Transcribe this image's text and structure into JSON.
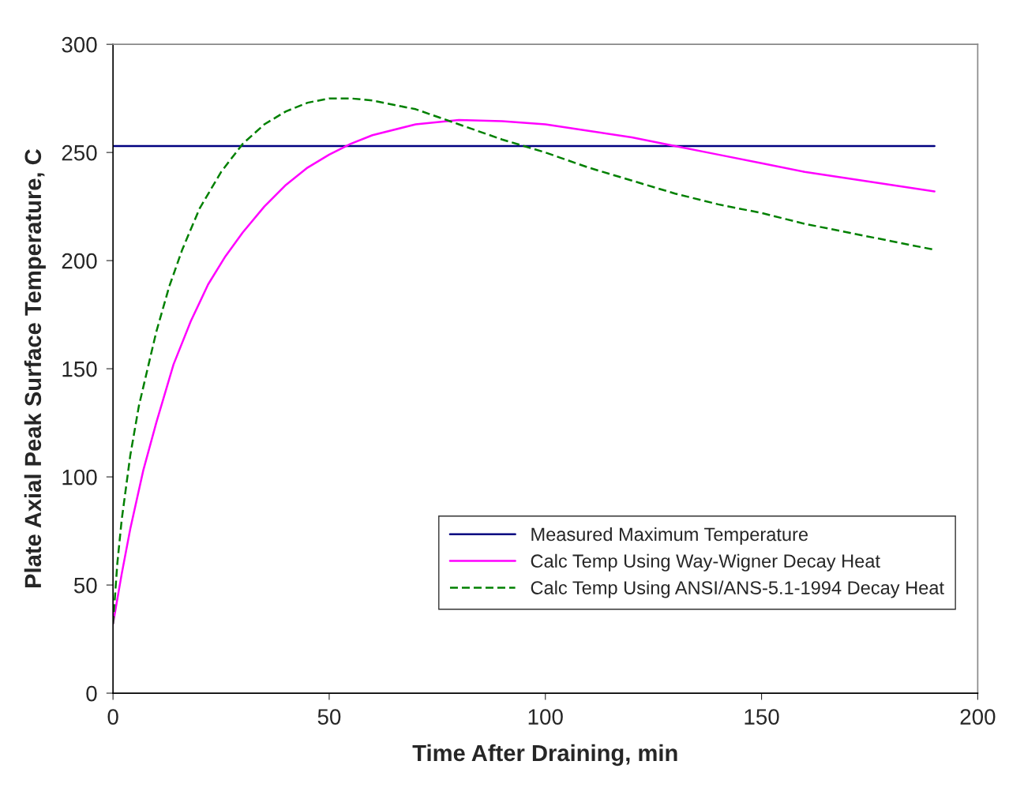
{
  "chart_data": {
    "type": "line",
    "xlabel": "Time After Draining, min",
    "ylabel": "Plate Axial Peak Surface Temperature, C",
    "xlim": [
      0,
      200
    ],
    "xticks": [
      0,
      50,
      100,
      150,
      200
    ],
    "ylim": [
      0,
      300
    ],
    "yticks": [
      0,
      50,
      100,
      150,
      200,
      250,
      300
    ],
    "grid": false,
    "legend": "bottom right",
    "series": [
      {
        "name": "Measured Maximum Temperature",
        "color": "#000080",
        "line_style": "solid",
        "x": [
          0,
          190
        ],
        "values": [
          253,
          253
        ]
      },
      {
        "name": "Calc Temp Using Way-Wigner Decay Heat",
        "color": "#ff00ff",
        "line_style": "solid",
        "x": [
          0,
          2,
          4,
          7,
          10,
          14,
          18,
          22,
          26,
          30,
          35,
          40,
          45,
          50,
          55,
          60,
          70,
          80,
          90,
          100,
          110,
          120,
          130,
          140,
          150,
          160,
          170,
          180,
          190
        ],
        "values": [
          32,
          55,
          76,
          103,
          125,
          152,
          172,
          189,
          202,
          213,
          225,
          235,
          243,
          249,
          254,
          258,
          263,
          265,
          264.5,
          263,
          260,
          257,
          253,
          249,
          245,
          241,
          238,
          235,
          232
        ]
      },
      {
        "name": "Calc Temp Using ANSI/ANS-5.1-1994 Decay Heat",
        "color": "#008000",
        "line_style": "dashed",
        "x": [
          0,
          1,
          2,
          4,
          6,
          8,
          10,
          13,
          16,
          20,
          25,
          30,
          35,
          40,
          45,
          50,
          55,
          60,
          70,
          80,
          90,
          100,
          110,
          120,
          130,
          140,
          150,
          160,
          170,
          180,
          190
        ],
        "values": [
          32,
          60,
          80,
          110,
          133,
          150,
          167,
          188,
          205,
          224,
          241,
          254,
          263,
          269,
          273,
          275,
          275,
          274,
          270,
          263,
          256,
          250,
          243,
          237,
          231,
          226,
          222,
          217,
          213,
          209,
          205
        ]
      }
    ]
  }
}
